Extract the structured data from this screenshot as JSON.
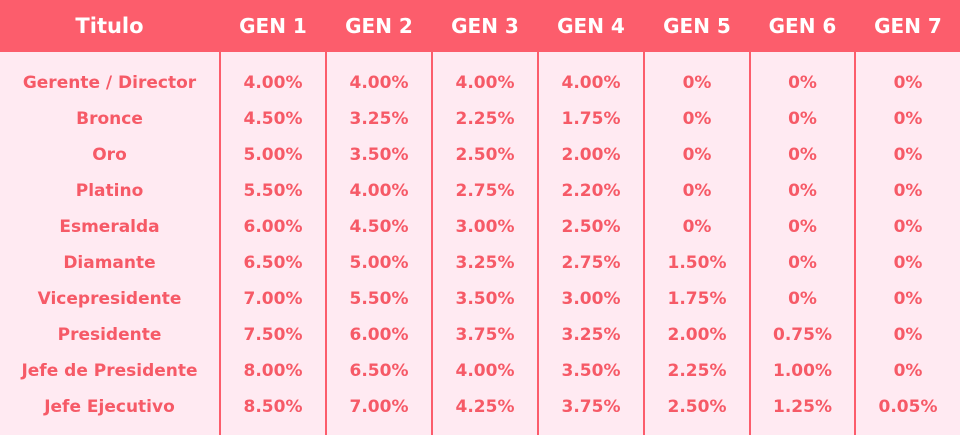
{
  "table": {
    "headers": [
      "Titulo",
      "GEN 1",
      "GEN 2",
      "GEN 3",
      "GEN 4",
      "GEN 5",
      "GEN 6",
      "GEN 7"
    ],
    "rows": [
      {
        "title": "Gerente / Director",
        "values": [
          "4.00%",
          "4.00%",
          "4.00%",
          "4.00%",
          "0%",
          "0%",
          "0%"
        ]
      },
      {
        "title": "Bronce",
        "values": [
          "4.50%",
          "3.25%",
          "2.25%",
          "1.75%",
          "0%",
          "0%",
          "0%"
        ]
      },
      {
        "title": "Oro",
        "values": [
          "5.00%",
          "3.50%",
          "2.50%",
          "2.00%",
          "0%",
          "0%",
          "0%"
        ]
      },
      {
        "title": "Platino",
        "values": [
          "5.50%",
          "4.00%",
          "2.75%",
          "2.20%",
          "0%",
          "0%",
          "0%"
        ]
      },
      {
        "title": "Esmeralda",
        "values": [
          "6.00%",
          "4.50%",
          "3.00%",
          "2.50%",
          "0%",
          "0%",
          "0%"
        ]
      },
      {
        "title": "Diamante",
        "values": [
          "6.50%",
          "5.00%",
          "3.25%",
          "2.75%",
          "1.50%",
          "0%",
          "0%"
        ]
      },
      {
        "title": "Vicepresidente",
        "values": [
          "7.00%",
          "5.50%",
          "3.50%",
          "3.00%",
          "1.75%",
          "0%",
          "0%"
        ]
      },
      {
        "title": "Presidente",
        "values": [
          "7.50%",
          "6.00%",
          "3.75%",
          "3.25%",
          "2.00%",
          "0.75%",
          "0%"
        ]
      },
      {
        "title": "Jefe de Presidente",
        "values": [
          "8.00%",
          "6.50%",
          "4.00%",
          "3.50%",
          "2.25%",
          "1.00%",
          "0%"
        ]
      },
      {
        "title": "Jefe Ejecutivo",
        "values": [
          "8.50%",
          "7.00%",
          "4.25%",
          "3.75%",
          "2.50%",
          "1.25%",
          "0.05%"
        ]
      }
    ]
  },
  "colors": {
    "header_bg": "#fc5d6c",
    "page_bg": "#ffeaf2",
    "cell_text": "#f65a67",
    "header_text": "#ffffff"
  }
}
